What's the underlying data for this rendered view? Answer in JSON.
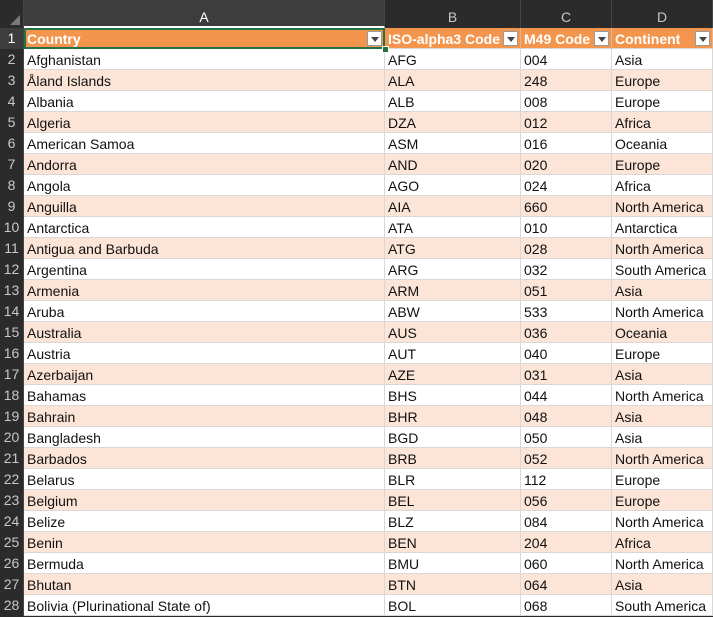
{
  "columns": [
    "A",
    "B",
    "C",
    "D"
  ],
  "header": [
    "Country",
    "ISO-alpha3 Code",
    "M49 Code",
    "Continent"
  ],
  "rows": [
    [
      "Afghanistan",
      "AFG",
      "004",
      "Asia"
    ],
    [
      "Åland Islands",
      "ALA",
      "248",
      "Europe"
    ],
    [
      "Albania",
      "ALB",
      "008",
      "Europe"
    ],
    [
      "Algeria",
      "DZA",
      "012",
      "Africa"
    ],
    [
      "American Samoa",
      "ASM",
      "016",
      "Oceania"
    ],
    [
      "Andorra",
      "AND",
      "020",
      "Europe"
    ],
    [
      "Angola",
      "AGO",
      "024",
      "Africa"
    ],
    [
      "Anguilla",
      "AIA",
      "660",
      "North America"
    ],
    [
      "Antarctica",
      "ATA",
      "010",
      "Antarctica"
    ],
    [
      "Antigua and Barbuda",
      "ATG",
      "028",
      "North America"
    ],
    [
      "Argentina",
      "ARG",
      "032",
      "South America"
    ],
    [
      "Armenia",
      "ARM",
      "051",
      "Asia"
    ],
    [
      "Aruba",
      "ABW",
      "533",
      "North America"
    ],
    [
      "Australia",
      "AUS",
      "036",
      "Oceania"
    ],
    [
      "Austria",
      "AUT",
      "040",
      "Europe"
    ],
    [
      "Azerbaijan",
      "AZE",
      "031",
      "Asia"
    ],
    [
      "Bahamas",
      "BHS",
      "044",
      "North America"
    ],
    [
      "Bahrain",
      "BHR",
      "048",
      "Asia"
    ],
    [
      "Bangladesh",
      "BGD",
      "050",
      "Asia"
    ],
    [
      "Barbados",
      "BRB",
      "052",
      "North America"
    ],
    [
      "Belarus",
      "BLR",
      "112",
      "Europe"
    ],
    [
      "Belgium",
      "BEL",
      "056",
      "Europe"
    ],
    [
      "Belize",
      "BLZ",
      "084",
      "North America"
    ],
    [
      "Benin",
      "BEN",
      "204",
      "Africa"
    ],
    [
      "Bermuda",
      "BMU",
      "060",
      "North America"
    ],
    [
      "Bhutan",
      "BTN",
      "064",
      "Asia"
    ],
    [
      "Bolivia (Plurinational State of)",
      "BOL",
      "068",
      "South America"
    ]
  ],
  "row_numbers": [
    "1",
    "2",
    "3",
    "4",
    "5",
    "6",
    "7",
    "8",
    "9",
    "10",
    "11",
    "12",
    "13",
    "14",
    "15",
    "16",
    "17",
    "18",
    "19",
    "20",
    "21",
    "22",
    "23",
    "24",
    "25",
    "26",
    "27",
    "28"
  ],
  "selected_cell": "A1",
  "colors": {
    "header_fill": "#f4954e",
    "band_fill": "#fce4d6",
    "selection": "#217346"
  }
}
